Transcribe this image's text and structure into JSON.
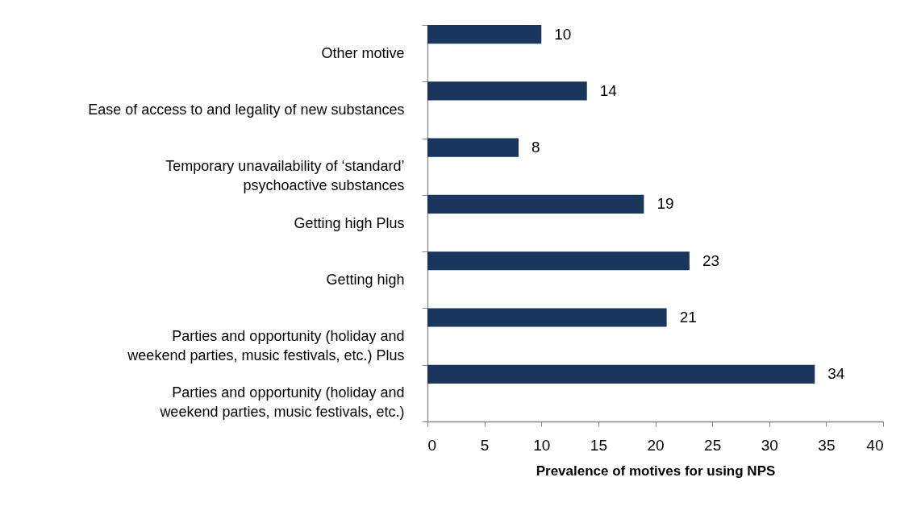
{
  "chart_data": {
    "type": "bar",
    "orientation": "horizontal",
    "categories": [
      "Other motive",
      "Ease of access to and legality of new substances",
      "Temporary unavailability of ‘standard’ psychoactive substances",
      "Getting high Plus",
      "Getting high",
      "Parties and opportunity (holiday and weekend parties, music festivals, etc.) Plus",
      "Parties and opportunity (holiday and weekend parties, music festivals, etc.)"
    ],
    "values": [
      10,
      14,
      8,
      19,
      23,
      21,
      34
    ],
    "color": "#1b365d",
    "xlabel": "Prevalence of motives for using NPS",
    "xlim": [
      0,
      40
    ],
    "xticks": [
      0,
      5,
      10,
      15,
      20,
      25,
      30,
      35,
      40
    ],
    "data_labels": true,
    "grid": false
  }
}
